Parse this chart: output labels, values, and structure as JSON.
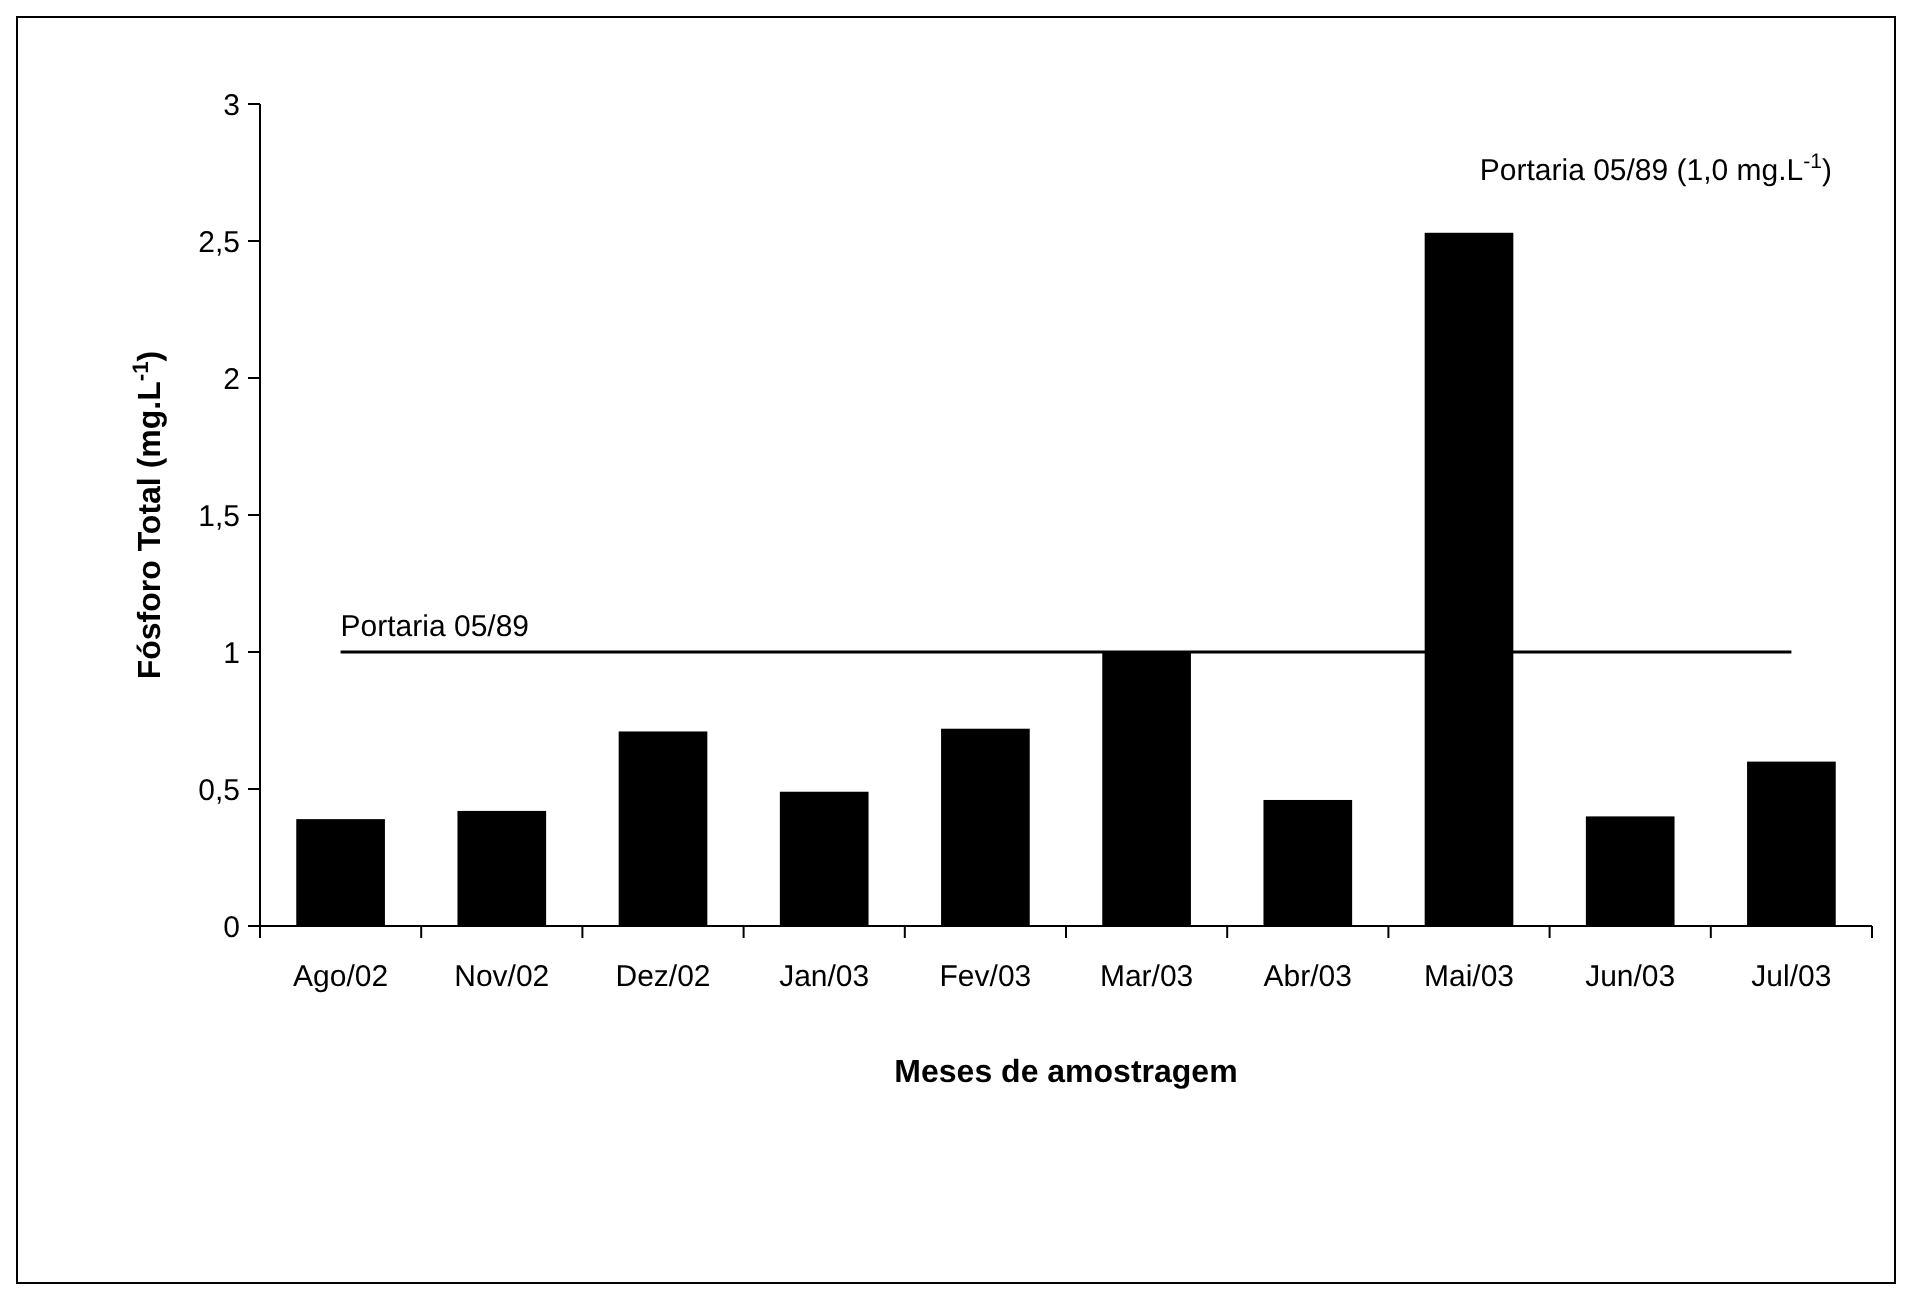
{
  "chart_data": {
    "type": "bar",
    "xlabel": "Meses de amostragem",
    "ylabel": "Fósforo Total (mg.L$^{-1}$)",
    "categories": [
      "Ago/02",
      "Nov/02",
      "Dez/02",
      "Jan/03",
      "Fev/03",
      "Mar/03",
      "Abr/03",
      "Mai/03",
      "Jun/03",
      "Jul/03"
    ],
    "values": [
      0.39,
      0.42,
      0.71,
      0.49,
      0.72,
      1.0,
      0.46,
      2.53,
      0.4,
      0.6
    ],
    "color": "#000000",
    "ylim": [
      0,
      3
    ],
    "yticks": [
      0,
      {
        "value": 0.5,
        "label": "0,5"
      },
      1,
      {
        "value": 1.5,
        "label": "1,5"
      },
      2,
      {
        "value": 2.5,
        "label": "2,5"
      },
      3
    ],
    "ref_lines": [
      {
        "axis": "y",
        "value": 1,
        "label": "Portaria 05/89",
        "color": "#000000"
      }
    ],
    "annotations": [
      "Portaria 05/89 (1,0 mg.L$^{-1}$)"
    ],
    "grid": false
  }
}
